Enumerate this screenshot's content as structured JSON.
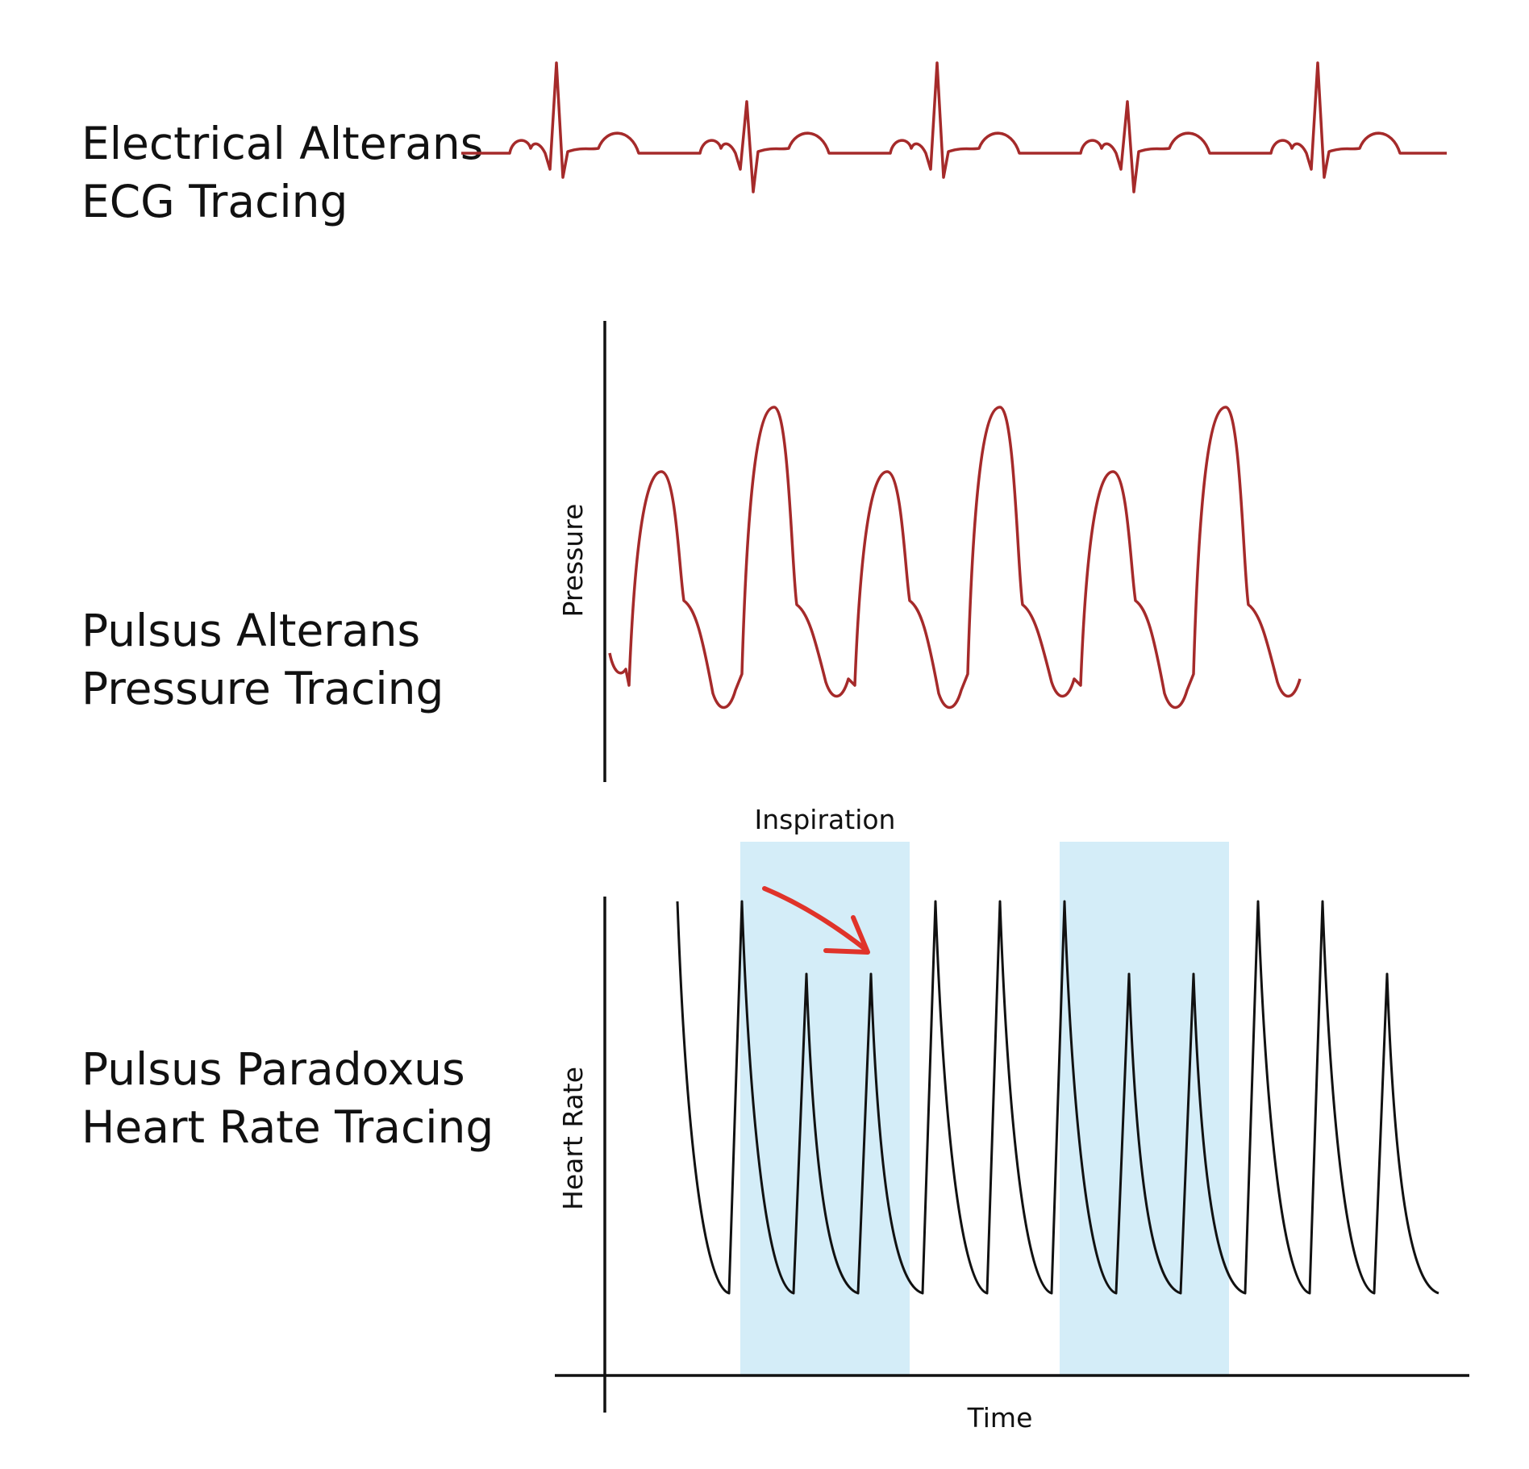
{
  "colors": {
    "ecg_trace": "#a52a2a",
    "pressure_trace": "#a52a2a",
    "hr_trace": "#111111",
    "inspiration_band": "#d4edf8",
    "arrow": "#e0332a",
    "axis": "#111111"
  },
  "sections": {
    "ecg": {
      "line1": "Electrical Alterans",
      "line2": "ECG Tracing"
    },
    "pressure": {
      "line1": "Pulsus Alterans",
      "line2": "Pressure Tracing",
      "y_axis": "Pressure"
    },
    "heart_rate": {
      "line1": "Pulsus Paradoxus",
      "line2": "Heart Rate Tracing",
      "y_axis": "Heart Rate",
      "x_axis": "Time",
      "band_label": "Inspiration"
    }
  },
  "ecg_beats": [
    {
      "amplitude": "tall"
    },
    {
      "amplitude": "short"
    },
    {
      "amplitude": "tall"
    },
    {
      "amplitude": "short"
    },
    {
      "amplitude": "tall"
    }
  ],
  "pressure_beats": [
    {
      "amplitude": "low"
    },
    {
      "amplitude": "high"
    },
    {
      "amplitude": "low"
    },
    {
      "amplitude": "high"
    },
    {
      "amplitude": "low"
    },
    {
      "amplitude": "high"
    }
  ],
  "heart_rate_beats": [
    {
      "phase": "expiration",
      "amplitude": "high"
    },
    {
      "phase": "inspiration",
      "amplitude": "high"
    },
    {
      "phase": "inspiration",
      "amplitude": "reduced"
    },
    {
      "phase": "inspiration",
      "amplitude": "reduced"
    },
    {
      "phase": "expiration",
      "amplitude": "high"
    },
    {
      "phase": "expiration",
      "amplitude": "high"
    },
    {
      "phase": "inspiration",
      "amplitude": "high"
    },
    {
      "phase": "inspiration",
      "amplitude": "reduced"
    },
    {
      "phase": "inspiration",
      "amplitude": "reduced"
    },
    {
      "phase": "expiration",
      "amplitude": "high"
    },
    {
      "phase": "expiration",
      "amplitude": "high"
    },
    {
      "phase": "expiration",
      "amplitude": "reduced"
    }
  ],
  "annotations": {
    "arrow_meaning": "decrease in amplitude during inspiration"
  }
}
